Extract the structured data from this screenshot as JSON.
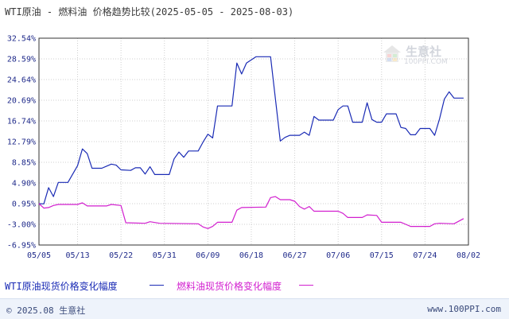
{
  "title": "WTI原油 - 燃料油 价格趋势比较(2025-05-05 - 2025-08-03)",
  "watermark": {
    "text": "生意社",
    "url": "100PPI.COM"
  },
  "footer": {
    "copyright": "© 2025.08 生意社",
    "site": "www.100PPI.com"
  },
  "colors": {
    "wti": "#1a2bb5",
    "fuel": "#d21fcf",
    "axis": "#1f2a8a",
    "grid": "#cfcfcf"
  },
  "chart_data": {
    "type": "line",
    "title": "WTI原油 - 燃料油 价格趋势比较(2025-05-05 - 2025-08-03)",
    "x_range": [
      "2025-05-05",
      "2025-08-03"
    ],
    "y_ticks": [
      "32.54%",
      "28.59%",
      "24.64%",
      "20.69%",
      "16.74%",
      "12.79%",
      "8.85%",
      "4.90%",
      "0.95%",
      "-3.00%",
      "-6.95%"
    ],
    "y_tick_values": [
      32.54,
      28.59,
      24.64,
      20.69,
      16.74,
      12.79,
      8.85,
      4.9,
      0.95,
      -3.0,
      -6.95
    ],
    "ylim": [
      -6.95,
      32.54
    ],
    "x_ticks": [
      "05/05",
      "05/13",
      "05/22",
      "05/31",
      "06/09",
      "06/18",
      "06/27",
      "07/06",
      "07/15",
      "07/24",
      "08/02"
    ],
    "x_tick_days": [
      0,
      8,
      17,
      26,
      35,
      44,
      53,
      62,
      71,
      80,
      89
    ],
    "grid": true,
    "legend": "bottom",
    "series": [
      {
        "name": "WTI原油现货价格变化幅度",
        "color": "#1a2bb5",
        "points": [
          [
            0,
            0.95
          ],
          [
            1,
            0.9
          ],
          [
            2,
            4.0
          ],
          [
            3,
            2.3
          ],
          [
            4,
            5.0
          ],
          [
            6,
            5.0
          ],
          [
            8,
            8.2
          ],
          [
            9,
            11.4
          ],
          [
            10,
            10.5
          ],
          [
            11,
            7.7
          ],
          [
            13,
            7.7
          ],
          [
            14,
            8.1
          ],
          [
            15,
            8.5
          ],
          [
            16,
            8.3
          ],
          [
            17,
            7.4
          ],
          [
            19,
            7.3
          ],
          [
            20,
            7.8
          ],
          [
            21,
            7.8
          ],
          [
            22,
            6.6
          ],
          [
            23,
            8.0
          ],
          [
            24,
            6.5
          ],
          [
            27,
            6.5
          ],
          [
            28,
            9.5
          ],
          [
            29,
            10.8
          ],
          [
            30,
            9.8
          ],
          [
            31,
            11.0
          ],
          [
            33,
            11.0
          ],
          [
            34,
            12.7
          ],
          [
            35,
            14.2
          ],
          [
            36,
            13.5
          ],
          [
            37,
            19.6
          ],
          [
            40,
            19.6
          ],
          [
            41,
            27.8
          ],
          [
            42,
            25.7
          ],
          [
            43,
            27.8
          ],
          [
            45,
            29.0
          ],
          [
            48,
            29.0
          ],
          [
            50,
            12.9
          ],
          [
            51,
            13.6
          ],
          [
            52,
            14.0
          ],
          [
            54,
            14.0
          ],
          [
            55,
            14.6
          ],
          [
            56,
            14.0
          ],
          [
            57,
            17.6
          ],
          [
            58,
            16.9
          ],
          [
            60,
            16.9
          ],
          [
            61,
            16.9
          ],
          [
            62,
            18.9
          ],
          [
            63,
            19.6
          ],
          [
            64,
            19.6
          ],
          [
            65,
            16.5
          ],
          [
            67,
            16.5
          ],
          [
            68,
            20.2
          ],
          [
            69,
            17.0
          ],
          [
            70,
            16.5
          ],
          [
            71,
            16.5
          ],
          [
            72,
            18.1
          ],
          [
            74,
            18.1
          ],
          [
            75,
            15.5
          ],
          [
            76,
            15.3
          ],
          [
            77,
            14.1
          ],
          [
            78,
            14.1
          ],
          [
            79,
            15.3
          ],
          [
            81,
            15.3
          ],
          [
            82,
            14.0
          ],
          [
            83,
            17.1
          ],
          [
            84,
            20.9
          ],
          [
            85,
            22.3
          ],
          [
            86,
            21.1
          ],
          [
            88,
            21.1
          ]
        ]
      },
      {
        "name": "燃料油现货价格变化幅度",
        "color": "#d21fcf",
        "points": [
          [
            0,
            0.95
          ],
          [
            1,
            0.1
          ],
          [
            2,
            0.2
          ],
          [
            3,
            0.6
          ],
          [
            4,
            0.8
          ],
          [
            8,
            0.8
          ],
          [
            9,
            1.1
          ],
          [
            10,
            0.5
          ],
          [
            14,
            0.5
          ],
          [
            15,
            0.8
          ],
          [
            17,
            0.6
          ],
          [
            18,
            -2.7
          ],
          [
            22,
            -2.8
          ],
          [
            23,
            -2.5
          ],
          [
            25,
            -2.8
          ],
          [
            33,
            -2.9
          ],
          [
            34,
            -3.5
          ],
          [
            35,
            -3.8
          ],
          [
            36,
            -3.4
          ],
          [
            37,
            -2.6
          ],
          [
            40,
            -2.6
          ],
          [
            41,
            -0.3
          ],
          [
            42,
            0.2
          ],
          [
            47,
            0.3
          ],
          [
            48,
            2.1
          ],
          [
            49,
            2.3
          ],
          [
            50,
            1.7
          ],
          [
            52,
            1.7
          ],
          [
            53,
            1.4
          ],
          [
            54,
            0.4
          ],
          [
            55,
            -0.1
          ],
          [
            56,
            0.4
          ],
          [
            57,
            -0.5
          ],
          [
            62,
            -0.5
          ],
          [
            63,
            -0.9
          ],
          [
            64,
            -1.7
          ],
          [
            67,
            -1.7
          ],
          [
            68,
            -1.2
          ],
          [
            70,
            -1.3
          ],
          [
            71,
            -2.6
          ],
          [
            75,
            -2.6
          ],
          [
            76,
            -3.0
          ],
          [
            77,
            -3.4
          ],
          [
            80,
            -3.4
          ],
          [
            81,
            -3.4
          ],
          [
            82,
            -2.9
          ],
          [
            83,
            -2.8
          ],
          [
            86,
            -2.9
          ],
          [
            88,
            -1.9
          ]
        ]
      }
    ]
  }
}
